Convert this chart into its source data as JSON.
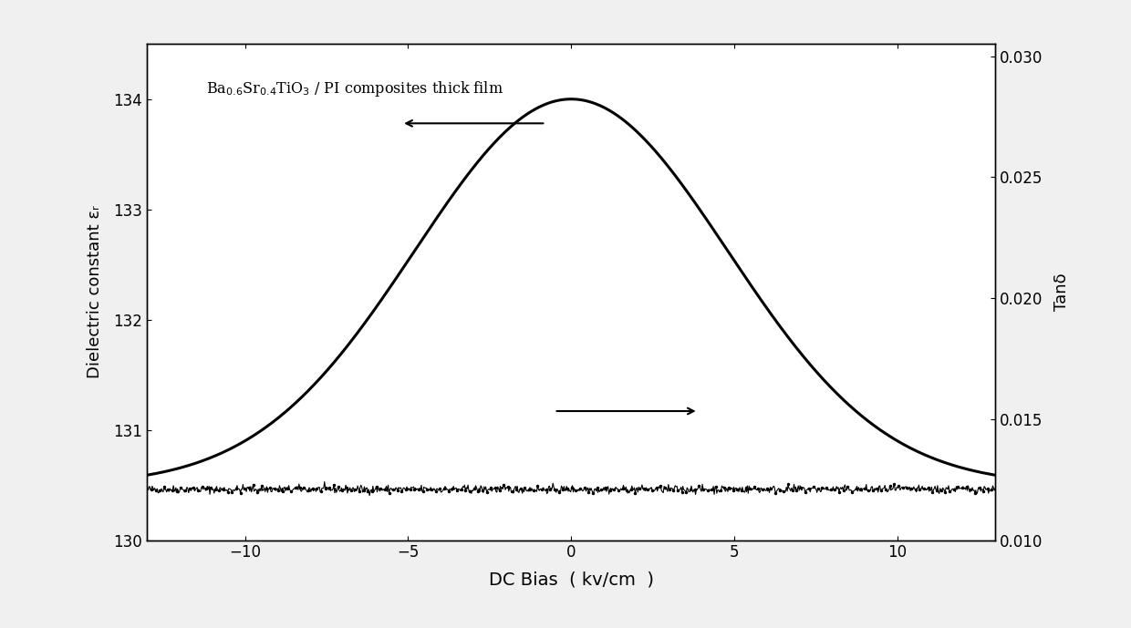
{
  "xlabel": "DC Bias  ( kv/cm  )",
  "ylabel_left": "Dielectric constant εᵣ",
  "ylabel_right": "Tanδ",
  "xlim": [
    -13,
    13
  ],
  "ylim_left": [
    130,
    134.5
  ],
  "ylim_right": [
    0.01,
    0.0305
  ],
  "annotation_text": "Ba$_{0.6}$Sr$_{0.4}$TiO$_3$ / PI composites thick film",
  "peak_value": 134.0,
  "baseline_value": 130.5,
  "flat_tand": 0.0121,
  "sigma": 4.8,
  "background_color": "#f5f5f5",
  "line_color": "#000000",
  "xticks": [
    -10,
    -5,
    0,
    5,
    10
  ],
  "yticks_left": [
    130,
    131,
    132,
    133,
    134
  ],
  "yticks_right": [
    0.01,
    0.015,
    0.02,
    0.025,
    0.03
  ],
  "figsize": [
    12.4,
    6.89
  ],
  "dpi": 100
}
